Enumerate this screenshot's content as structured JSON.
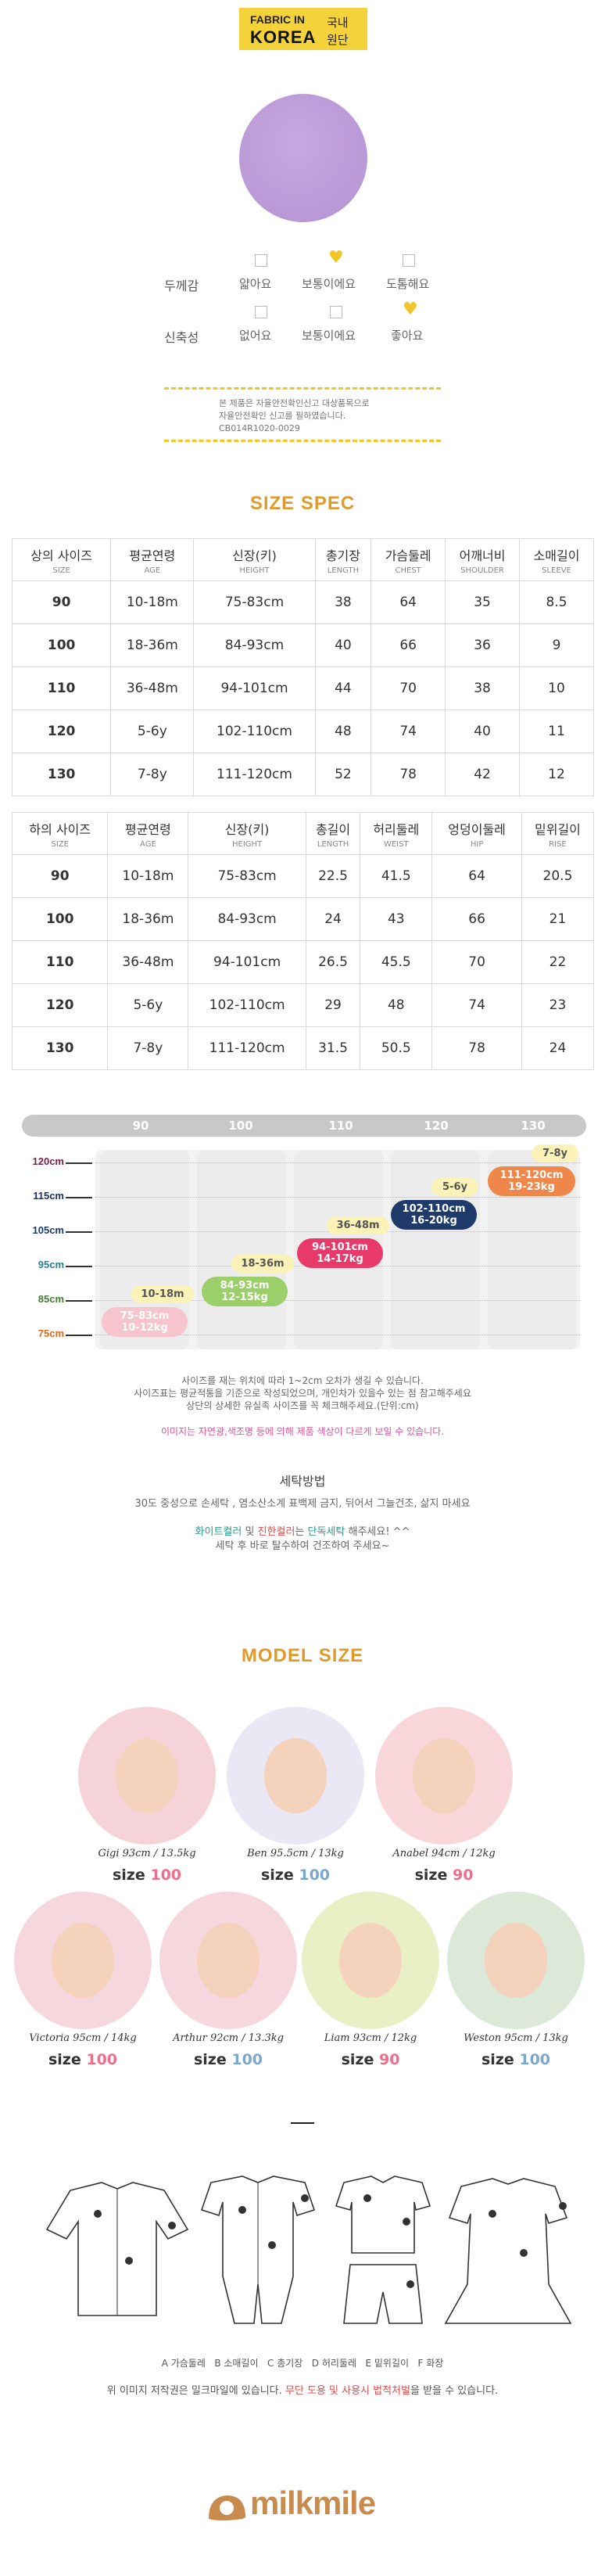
{
  "fabric_badge": {
    "line1": "FABRIC IN",
    "line2": "KOREA",
    "right1": "국내",
    "right2": "원단"
  },
  "properties": [
    {
      "label": "두께감",
      "options": [
        "얇아요",
        "보통이에요",
        "도톰해요"
      ],
      "selected": 1
    },
    {
      "label": "신축성",
      "options": [
        "없어요",
        "보통이에요",
        "좋아요"
      ],
      "selected": 2
    }
  ],
  "safety_notice": {
    "line1": "본 제품은 자율안전확인신고 대상품목으로",
    "line2": "자율안전확인 신고를 필하였습니다.",
    "line3": "CB014R1020-0029"
  },
  "size_spec": {
    "title": "SIZE SPEC",
    "top_headers": [
      {
        "ko": "상의 사이즈",
        "en": "SIZE"
      },
      {
        "ko": "평균연령",
        "en": "AGE"
      },
      {
        "ko": "신장(키)",
        "en": "HEIGHT"
      },
      {
        "ko": "총기장",
        "en": "LENGTH"
      },
      {
        "ko": "가슴둘레",
        "en": "CHEST"
      },
      {
        "ko": "어깨너비",
        "en": "SHOULDER"
      },
      {
        "ko": "소매길이",
        "en": "SLEEVE"
      }
    ],
    "top_rows": [
      [
        "90",
        "10-18m",
        "75-83cm",
        "38",
        "64",
        "35",
        "8.5"
      ],
      [
        "100",
        "18-36m",
        "84-93cm",
        "40",
        "66",
        "36",
        "9"
      ],
      [
        "110",
        "36-48m",
        "94-101cm",
        "44",
        "70",
        "38",
        "10"
      ],
      [
        "120",
        "5-6y",
        "102-110cm",
        "48",
        "74",
        "40",
        "11"
      ],
      [
        "130",
        "7-8y",
        "111-120cm",
        "52",
        "78",
        "42",
        "12"
      ]
    ],
    "bottom_headers": [
      {
        "ko": "하의 사이즈",
        "en": "SIZE"
      },
      {
        "ko": "평균연령",
        "en": "AGE"
      },
      {
        "ko": "신장(키)",
        "en": "HEIGHT"
      },
      {
        "ko": "총길이",
        "en": "LENGTH"
      },
      {
        "ko": "허리둘레",
        "en": "WEIST"
      },
      {
        "ko": "엉덩이둘레",
        "en": "HIP"
      },
      {
        "ko": "밑위길이",
        "en": "RISE"
      }
    ],
    "bottom_rows": [
      [
        "90",
        "10-18m",
        "75-83cm",
        "22.5",
        "41.5",
        "64",
        "20.5"
      ],
      [
        "100",
        "18-36m",
        "84-93cm",
        "24",
        "43",
        "66",
        "21"
      ],
      [
        "110",
        "36-48m",
        "94-101cm",
        "26.5",
        "45.5",
        "70",
        "22"
      ],
      [
        "120",
        "5-6y",
        "102-110cm",
        "29",
        "48",
        "74",
        "23"
      ],
      [
        "130",
        "7-8y",
        "111-120cm",
        "31.5",
        "50.5",
        "78",
        "24"
      ]
    ]
  },
  "growth_chart": {
    "sizes": [
      "90",
      "100",
      "110",
      "120",
      "130"
    ],
    "heights": [
      {
        "label": "120cm",
        "color": "#7a1f4a"
      },
      {
        "label": "115cm",
        "color": "#1e2f5c"
      },
      {
        "label": "105cm",
        "color": "#1e3a70"
      },
      {
        "label": "95cm",
        "color": "#2a7f8a"
      },
      {
        "label": "85cm",
        "color": "#4a7a3a"
      },
      {
        "label": "75cm",
        "color": "#e06a1a"
      }
    ],
    "pills": [
      {
        "text": "75-83cm\n10-12kg",
        "bg": "#f6c4cc",
        "fg": "#fff"
      },
      {
        "text": "10-18m",
        "bg": "#fbf2b8",
        "fg": "#555"
      },
      {
        "text": "84-93cm\n12-15kg",
        "bg": "#9bcf6a",
        "fg": "#fff"
      },
      {
        "text": "18-36m",
        "bg": "#fbf2b8",
        "fg": "#555"
      },
      {
        "text": "94-101cm\n14-17kg",
        "bg": "#e83a6a",
        "fg": "#fff"
      },
      {
        "text": "36-48m",
        "bg": "#fbf2b8",
        "fg": "#555"
      },
      {
        "text": "102-110cm\n16-20kg",
        "bg": "#1f3b6b",
        "fg": "#fff"
      },
      {
        "text": "5-6y",
        "bg": "#fbf2b8",
        "fg": "#555"
      },
      {
        "text": "111-120cm\n19-23kg",
        "bg": "#f0874a",
        "fg": "#fff"
      },
      {
        "text": "7-8y",
        "bg": "#fbf2b8",
        "fg": "#555"
      }
    ]
  },
  "size_notes": {
    "line1": "사이즈를 재는 위치에 따라 1~2cm 오차가 생길 수 있습니다.",
    "line2": "사이즈표는 평균적통을 기준으로 작성되었으며, 개인차가 있을수 있는 점 참고해주세요",
    "line3": "상단의 상세한 유실족 사이즈를 꼭 체크해주세요.(단위:cm)",
    "color_note": "이미지는 자연광,색조명 등에 의해 제품 색상이 다르게 보일 수 있습니다."
  },
  "washing": {
    "title": "세탁방법",
    "line1": "30도 중성으로 손세탁 , 염소산소계 표백제 금지, 뒤어서 그늘건조, 삶지 마세요",
    "line2_a": "화이트컬러",
    "line2_b": " 및 ",
    "line2_c": "진한컬러",
    "line2_d": "는 ",
    "line2_e": "단독세탁",
    "line2_f": " 해주세요! ^^",
    "line3": "세탁 후 바로 탈수하여 건조하여 주세요~"
  },
  "models": {
    "title": "MODEL SIZE",
    "size_word": "size",
    "list": [
      {
        "name": "Gigi 93cm / 13.5kg",
        "size": "100",
        "size_color": "#ef6f8a",
        "bg": "#f6d3d8"
      },
      {
        "name": "Ben 95.5cm / 13kg",
        "size": "100",
        "size_color": "#7ba7cf",
        "bg": "#e9e8f4"
      },
      {
        "name": "Anabel 94cm / 12kg",
        "size": "90",
        "size_color": "#ef6f8a",
        "bg": "#f8d6d9"
      },
      {
        "name": "Victoria 95cm / 14kg",
        "size": "100",
        "size_color": "#ef6f8a",
        "bg": "#f6d7de"
      },
      {
        "name": "Arthur 92cm / 13.3kg",
        "size": "100",
        "size_color": "#7ba7cf",
        "bg": "#f6d7de"
      },
      {
        "name": "Liam 93cm / 12kg",
        "size": "90",
        "size_color": "#ef6f8a",
        "bg": "#eaf0c6"
      },
      {
        "name": "Weston 95cm / 13kg",
        "size": "100",
        "size_color": "#7ba7cf",
        "bg": "#dce9d8"
      }
    ]
  },
  "measure_legend": [
    "A 가슴둘레",
    "B 소매길이",
    "C 총기장",
    "D 허리둘레",
    "E 밑위길이",
    "F 화장"
  ],
  "copyright": {
    "a": "위 이미지 저작권은 밀크마일에 있습니다. ",
    "b": "무단 도용 및 사용시 법적처벌",
    "c": "을 받을 수 있습니다."
  },
  "brand": "milkmile",
  "colors": {
    "accent": "#f2c52a",
    "orange": "#e09a2b",
    "teal": "#2b9a8a",
    "red": "#e24b4b",
    "pink": "#e2509a"
  }
}
